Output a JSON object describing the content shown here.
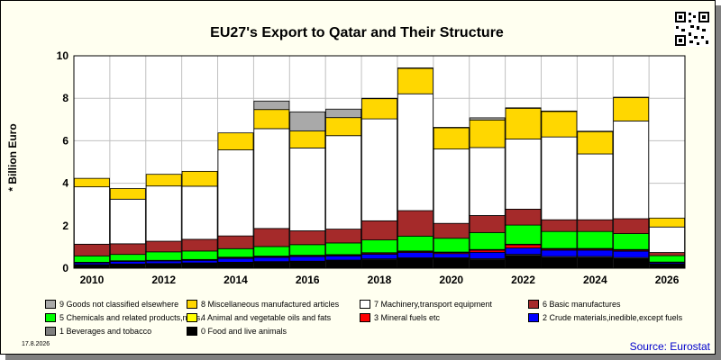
{
  "header": {
    "title": "EU27's Export to Qatar and Their Structure"
  },
  "footer": {
    "date": "17.8.2026",
    "source": "Source: Eurostat"
  },
  "qr_icon": "qr-code-icon",
  "chart_data": {
    "type": "bar",
    "stacked": true,
    "title": "EU27's Export to Qatar and Their Structure",
    "ylabel": "* Billion Euro",
    "xlabel": "",
    "ylim": [
      0,
      10
    ],
    "yticks": [
      0,
      2,
      4,
      6,
      8,
      10
    ],
    "grid": true,
    "categories": [
      "2010",
      "2011",
      "2012",
      "2013",
      "2014",
      "2015",
      "2016",
      "2017",
      "2018",
      "2019",
      "2020",
      "2021",
      "2022",
      "2023",
      "2024",
      "2025",
      "2026"
    ],
    "xtick_labels": [
      "2010",
      "2012",
      "2014",
      "2016",
      "2018",
      "2020",
      "2022",
      "2024",
      "2026"
    ],
    "legend_placement": "bottom",
    "series": [
      {
        "name": "0 Food and live animals",
        "color": "#000000",
        "values": [
          0.15,
          0.18,
          0.2,
          0.22,
          0.25,
          0.28,
          0.3,
          0.35,
          0.4,
          0.45,
          0.45,
          0.4,
          0.6,
          0.5,
          0.5,
          0.45,
          0.18
        ]
      },
      {
        "name": "1 Beverages and tobacco",
        "color": "#808080",
        "values": [
          0.02,
          0.02,
          0.02,
          0.03,
          0.03,
          0.03,
          0.03,
          0.03,
          0.04,
          0.04,
          0.04,
          0.05,
          0.05,
          0.05,
          0.05,
          0.05,
          0.02
        ]
      },
      {
        "name": "2 Crude materials,inedible,except fuels",
        "color": "#0000ff",
        "values": [
          0.08,
          0.12,
          0.12,
          0.12,
          0.18,
          0.2,
          0.22,
          0.2,
          0.22,
          0.25,
          0.2,
          0.3,
          0.3,
          0.3,
          0.3,
          0.3,
          0.06
        ]
      },
      {
        "name": "3 Mineral fuels etc",
        "color": "#ff0000",
        "values": [
          0.02,
          0.02,
          0.02,
          0.03,
          0.04,
          0.04,
          0.04,
          0.04,
          0.05,
          0.05,
          0.05,
          0.1,
          0.15,
          0.05,
          0.05,
          0.05,
          0.02
        ]
      },
      {
        "name": "4 Animal and vegetable oils and fats",
        "color": "#ffff00",
        "values": [
          0.01,
          0.01,
          0.01,
          0.01,
          0.02,
          0.02,
          0.02,
          0.02,
          0.02,
          0.02,
          0.02,
          0.03,
          0.03,
          0.03,
          0.03,
          0.03,
          0.01
        ]
      },
      {
        "name": "5 Chemicals and related products,n.e.s.",
        "color": "#00ff00",
        "values": [
          0.3,
          0.3,
          0.4,
          0.4,
          0.4,
          0.45,
          0.5,
          0.55,
          0.6,
          0.7,
          0.65,
          0.8,
          0.9,
          0.8,
          0.8,
          0.75,
          0.3
        ]
      },
      {
        "name": "6 Basic manufactures",
        "color": "#a52a2a",
        "values": [
          0.55,
          0.5,
          0.5,
          0.55,
          0.6,
          0.85,
          0.65,
          0.65,
          0.9,
          1.2,
          0.7,
          0.8,
          0.75,
          0.55,
          0.55,
          0.7,
          0.15
        ]
      },
      {
        "name": "7 Machinery,transport equipment",
        "color": "#ffffff",
        "values": [
          2.7,
          2.1,
          2.6,
          2.5,
          4.05,
          4.7,
          3.9,
          4.4,
          4.8,
          5.5,
          3.5,
          3.2,
          3.3,
          3.9,
          3.1,
          4.6,
          1.2
        ]
      },
      {
        "name": "8 Miscellaneous manufactured articles",
        "color": "#ffd700",
        "values": [
          0.4,
          0.5,
          0.55,
          0.7,
          0.8,
          0.9,
          0.8,
          0.85,
          0.95,
          1.2,
          1.0,
          1.3,
          1.45,
          1.2,
          1.05,
          1.1,
          0.42
        ]
      },
      {
        "name": "9 Goods not classified elsewhere",
        "color": "#a9a9a9",
        "values": [
          0.0,
          0.0,
          0.0,
          0.0,
          0.0,
          0.4,
          0.9,
          0.4,
          0.02,
          0.02,
          0.02,
          0.1,
          0.02,
          0.02,
          0.02,
          0.02,
          0.0
        ]
      }
    ]
  }
}
